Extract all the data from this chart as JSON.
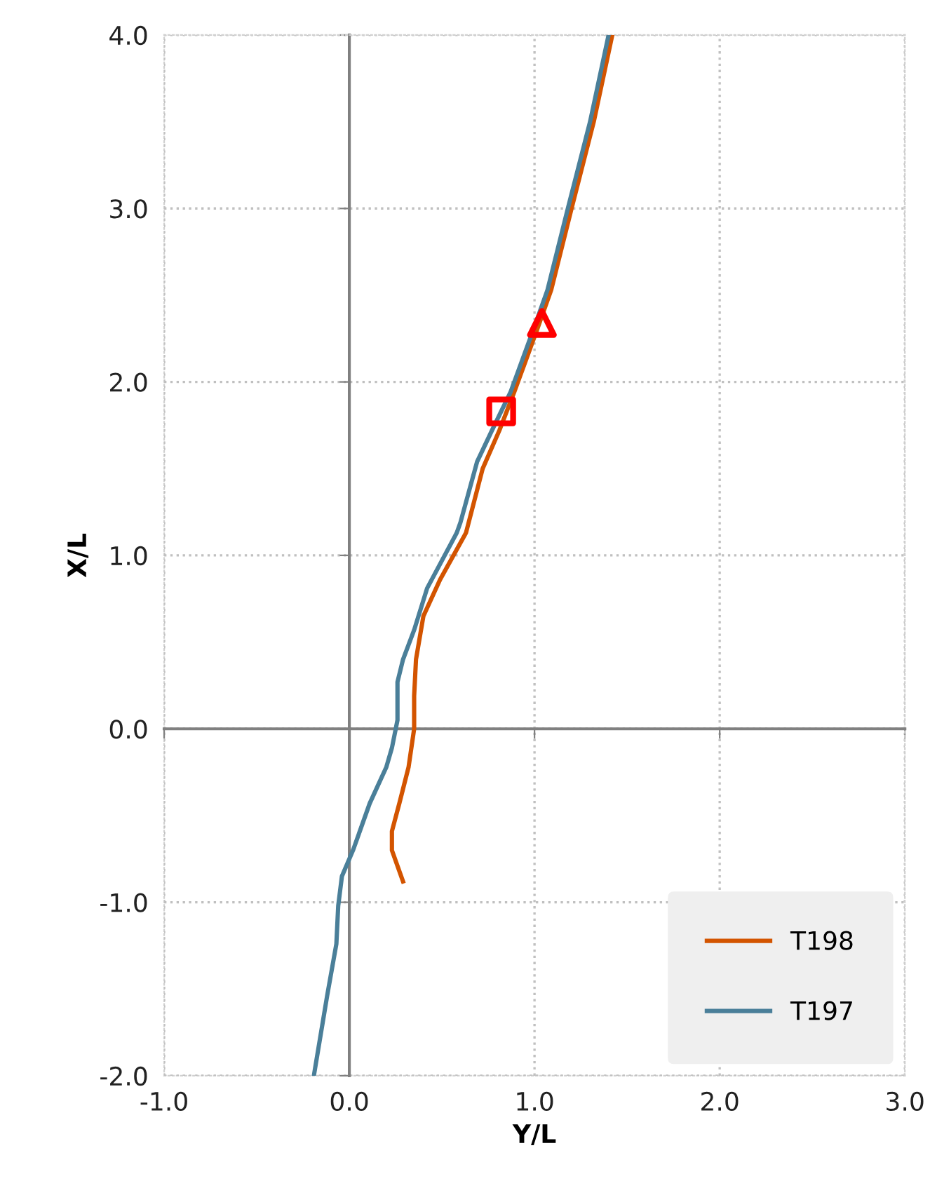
{
  "chart_data": {
    "type": "line",
    "xlabel": "Y/L",
    "ylabel": "X/L",
    "xlim": [
      -1.0,
      3.0
    ],
    "xticks": [
      {
        "value": -1,
        "label": "-1.0"
      },
      {
        "value": 0,
        "label": "0.0"
      },
      {
        "value": 1,
        "label": "1.0"
      },
      {
        "value": 2,
        "label": "2.0"
      },
      {
        "value": 3,
        "label": "3.0"
      }
    ],
    "ylim": [
      -2.0,
      4.0
    ],
    "yticks": [
      {
        "value": -2,
        "label": "-2.0"
      },
      {
        "value": -1,
        "label": "-1.0"
      },
      {
        "value": 0,
        "label": "0.0"
      },
      {
        "value": 1,
        "label": "1.0"
      },
      {
        "value": 2,
        "label": "2.0"
      },
      {
        "value": 3,
        "label": "3.0"
      },
      {
        "value": 4,
        "label": "4.0"
      }
    ],
    "grid": true,
    "legend": "bottom right",
    "marker": "none",
    "line_style": "solid",
    "series": [
      {
        "name": "T198",
        "color": "#d35400",
        "x": [
          0.29,
          0.23,
          0.23,
          0.27,
          0.32,
          0.35,
          0.35,
          0.36,
          0.4,
          0.49,
          0.63,
          0.72,
          0.81,
          0.89,
          1.01,
          1.09,
          1.2,
          1.32,
          1.42
        ],
        "values": [
          -0.88,
          -0.7,
          -0.59,
          -0.43,
          -0.22,
          0.0,
          0.19,
          0.4,
          0.65,
          0.86,
          1.13,
          1.5,
          1.72,
          1.94,
          2.29,
          2.53,
          3.0,
          3.5,
          4.0
        ]
      },
      {
        "name": "T197",
        "color": "#4a7f99",
        "x": [
          -0.19,
          -0.12,
          -0.07,
          -0.06,
          -0.04,
          0.02,
          0.11,
          0.2,
          0.23,
          0.26,
          0.26,
          0.29,
          0.35,
          0.42,
          0.58,
          0.6,
          0.69,
          0.77,
          0.87,
          0.99,
          1.07,
          1.18,
          1.3,
          1.4
        ],
        "values": [
          -1.99,
          -1.54,
          -1.24,
          -1.02,
          -0.85,
          -0.7,
          -0.43,
          -0.22,
          -0.11,
          0.05,
          0.27,
          0.4,
          0.57,
          0.81,
          1.13,
          1.19,
          1.54,
          1.72,
          1.94,
          2.29,
          2.53,
          3.0,
          3.5,
          4.0
        ]
      },
      {
        "type": "scatter",
        "marker": "square",
        "color": "#ff0000",
        "x": [
          0.82
        ],
        "values": [
          1.83
        ]
      },
      {
        "type": "scatter",
        "marker": "triangle",
        "color": "#ff0000",
        "x": [
          1.04
        ],
        "values": [
          2.34
        ]
      }
    ]
  }
}
